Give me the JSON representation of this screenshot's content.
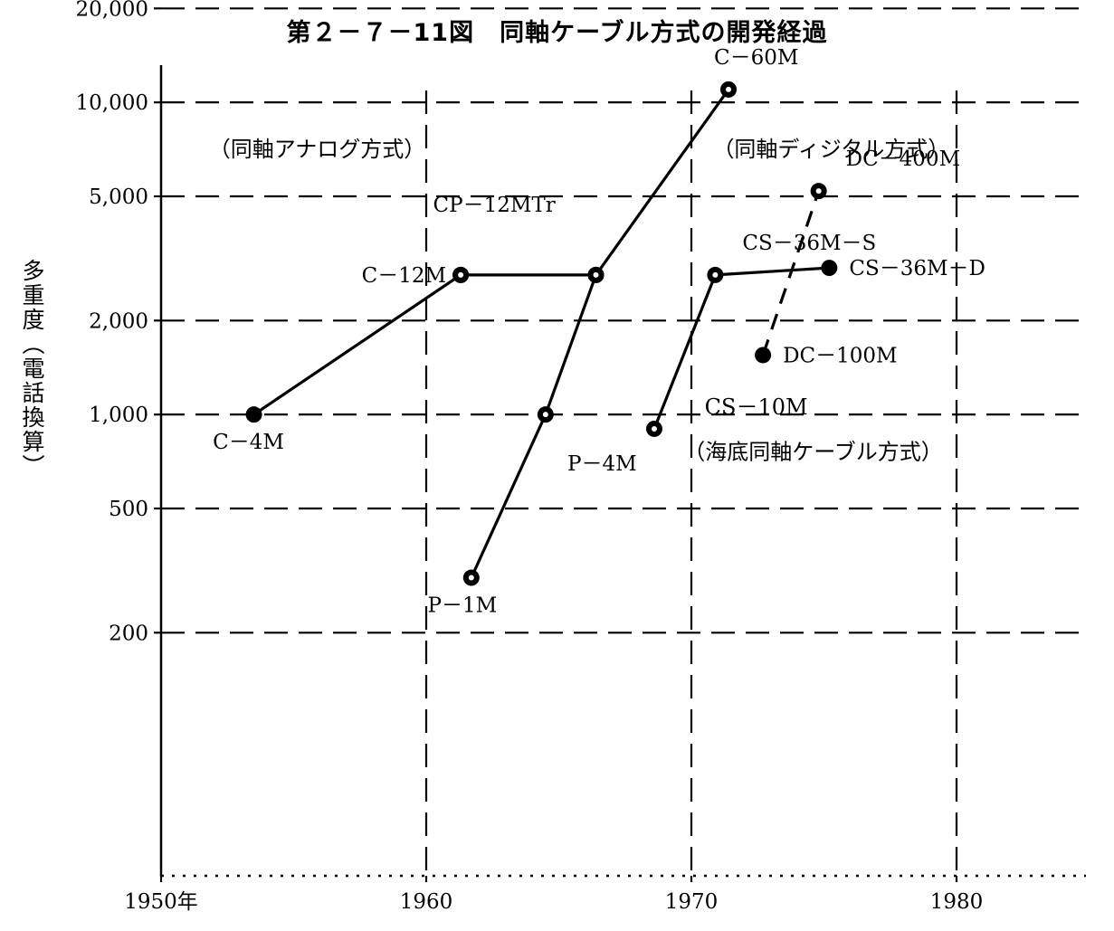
{
  "chart_data": {
    "type": "line",
    "title": "第２－７－11図　同軸ケーブル方式の開発経過",
    "ylabel": "多重度（電話換算）",
    "xlabel": "",
    "x_scale": "linear",
    "y_scale": "log",
    "xlim": [
      1950,
      1990
    ],
    "ylim": [
      140,
      22000
    ],
    "grid": true,
    "x_ticks": [
      {
        "value": 1950,
        "label": "1950年"
      },
      {
        "value": 1960,
        "label": "1960"
      },
      {
        "value": 1970,
        "label": "1970"
      },
      {
        "value": 1980,
        "label": "1980"
      }
    ],
    "y_ticks": [
      {
        "value": 200,
        "label": "200"
      },
      {
        "value": 500,
        "label": "500"
      },
      {
        "value": 1000,
        "label": "1,000"
      },
      {
        "value": 2000,
        "label": "2,000"
      },
      {
        "value": 5000,
        "label": "5,000"
      },
      {
        "value": 10000,
        "label": "10,000"
      },
      {
        "value": 20000,
        "label": "20,000"
      }
    ],
    "series": [
      {
        "style": "solid",
        "points": [
          {
            "x": 1953.5,
            "y": 1000,
            "label": "C－4M",
            "marker": "filled",
            "lpos": "below"
          },
          {
            "x": 1961.3,
            "y": 2800,
            "label": "C－12M",
            "marker": "ring",
            "lpos": "left"
          }
        ]
      },
      {
        "style": "solid",
        "points": [
          {
            "x": 1961.3,
            "y": 2800,
            "label": "",
            "marker": "ring",
            "lpos": "none"
          },
          {
            "x": 1966.4,
            "y": 2800,
            "label": "CP－12MTr",
            "marker": "ring",
            "lpos": "above-left"
          }
        ]
      },
      {
        "style": "solid",
        "points": [
          {
            "x": 1961.7,
            "y": 300,
            "label": "P－1M",
            "marker": "ring",
            "lpos": "below"
          },
          {
            "x": 1964.5,
            "y": 1000,
            "label": "",
            "marker": "ring",
            "lpos": "none"
          },
          {
            "x": 1966.4,
            "y": 2800,
            "label": "",
            "marker": "ring",
            "lpos": "none"
          },
          {
            "x": 1971.4,
            "y": 11000,
            "label": "C－60M",
            "marker": "ring",
            "lpos": "above"
          }
        ]
      },
      {
        "style": "solid",
        "points": [
          {
            "x": 1968.6,
            "y": 900,
            "label": "P－4M",
            "marker": "ring",
            "lpos": "below-left"
          },
          {
            "x": 1970.9,
            "y": 2800,
            "label": "CS－36M－S",
            "marker": "ring",
            "lpos": "above-right"
          },
          {
            "x": 1975.2,
            "y": 2950,
            "label": "CS－36M－D",
            "marker": "filled",
            "lpos": "right"
          }
        ]
      },
      {
        "style": "dashed",
        "points": [
          {
            "x": 1972.7,
            "y": 1550,
            "label": "DC－100M",
            "marker": "filled",
            "lpos": "right"
          },
          {
            "x": 1974.8,
            "y": 5200,
            "label": "DC－400M",
            "marker": "ring",
            "lpos": "above-right"
          }
        ]
      }
    ],
    "annotations": [
      {
        "text": "CS－10M",
        "x": 1970.5,
        "y": 1000
      },
      {
        "text": "（同軸アナログ方式）",
        "x": 1951.8,
        "y": 6700
      },
      {
        "text": "（同軸ディジタル方式）",
        "x": 1970.8,
        "y": 6700
      },
      {
        "text": "（海底同軸ケーブル方式）",
        "x": 1969.7,
        "y": 720
      }
    ]
  }
}
